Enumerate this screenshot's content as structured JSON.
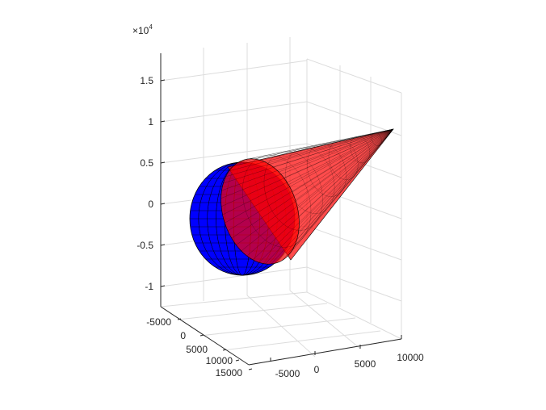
{
  "chart_data": {
    "type": "surface3d",
    "title": "",
    "xlabel": "",
    "ylabel": "",
    "zlabel": "",
    "grid": true,
    "z_exponent_label": "×10^4",
    "x_ticks": [
      -5000,
      0,
      5000,
      10000,
      15000
    ],
    "y_ticks": [
      -5000,
      0,
      5000,
      10000
    ],
    "z_ticks": [
      -1,
      -0.5,
      0,
      0.5,
      1,
      1.5
    ],
    "z_scale_exponent": 4,
    "xlim": [
      -8000,
      17500
    ],
    "ylim": [
      -8000,
      11000
    ],
    "zlim": [
      -12000,
      18000
    ],
    "surfaces": [
      {
        "kind": "sphere",
        "center": [
          0,
          0,
          0
        ],
        "radius": 6378,
        "face_color": "#0000ff",
        "edge_color": "#000000",
        "opacity": 1.0
      },
      {
        "kind": "cone",
        "apex": [
          0,
          10000,
          0
        ],
        "base_center": [
          0,
          0,
          0
        ],
        "face_color": "#ff0000",
        "edge_color": "#000000",
        "opacity": 0.7
      }
    ]
  }
}
